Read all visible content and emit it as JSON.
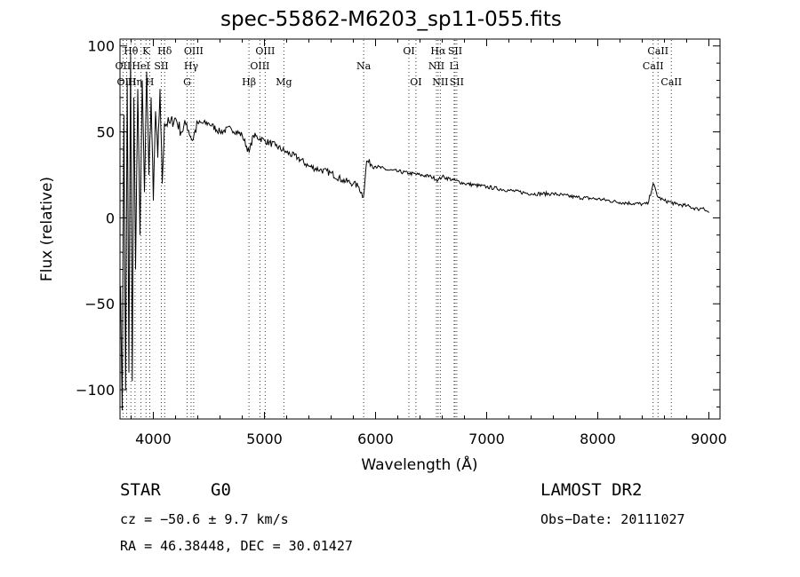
{
  "chart_data": {
    "type": "line",
    "title": "spec-55862-M6203_sp11-055.fits",
    "xlabel": "Wavelength (Å)",
    "ylabel": "Flux (relative)",
    "xlim": [
      3700,
      9100
    ],
    "ylim": [
      -117,
      104
    ],
    "xticks": [
      4000,
      5000,
      6000,
      7000,
      8000,
      9000
    ],
    "yticks": [
      -100,
      -50,
      0,
      50,
      100
    ],
    "grid": false,
    "series": [
      {
        "color": "#000000",
        "x": [
          3705,
          3720,
          3735,
          3750,
          3765,
          3780,
          3795,
          3810,
          3825,
          3840,
          3860,
          3880,
          3900,
          3920,
          3940,
          3960,
          3980,
          4000,
          4020,
          4040,
          4060,
          4080,
          4100,
          4150,
          4200,
          4250,
          4300,
          4350,
          4400,
          4500,
          4600,
          4700,
          4800,
          4862,
          4900,
          5000,
          5100,
          5200,
          5300,
          5400,
          5500,
          5600,
          5700,
          5800,
          5850,
          5890,
          5920,
          6000,
          6100,
          6200,
          6300,
          6400,
          6500,
          6563,
          6600,
          6700,
          6800,
          6900,
          7000,
          7200,
          7400,
          7600,
          7800,
          8000,
          8200,
          8400,
          8450,
          8498,
          8542,
          8600,
          8662,
          8700,
          8800,
          8900,
          8950,
          9000
        ],
        "y": [
          -40,
          -112,
          60,
          -100,
          80,
          -90,
          95,
          -95,
          70,
          -30,
          75,
          -10,
          80,
          15,
          85,
          25,
          70,
          10,
          62,
          35,
          75,
          20,
          55,
          55,
          58,
          50,
          55,
          45,
          55,
          55,
          50,
          52,
          48,
          38,
          48,
          45,
          42,
          38,
          35,
          30,
          28,
          26,
          22,
          20,
          18,
          12,
          33,
          30,
          28,
          27,
          26,
          25,
          24,
          22,
          24,
          22,
          20,
          19,
          18,
          16,
          14,
          14,
          12,
          11,
          9,
          8,
          8,
          20,
          12,
          10,
          9,
          8,
          7,
          5,
          6,
          3
        ]
      }
    ],
    "lines": [
      {
        "label": "Hθ",
        "wl": 3798,
        "row": 1
      },
      {
        "label": "OII",
        "wl": 3727,
        "row": 2
      },
      {
        "label": "OIII",
        "wl": 3760,
        "row": 3
      },
      {
        "label": "K",
        "wl": 3934,
        "row": 1
      },
      {
        "label": "HeI",
        "wl": 3889,
        "row": 2
      },
      {
        "label": "SII",
        "wl": 4072,
        "row": 2
      },
      {
        "label": "Hη",
        "wl": 3835,
        "row": 3
      },
      {
        "label": "H",
        "wl": 3968,
        "row": 3
      },
      {
        "label": "Hδ",
        "wl": 4102,
        "row": 1
      },
      {
        "label": "OIII",
        "wl": 4363,
        "row": 1
      },
      {
        "label": "Hγ",
        "wl": 4340,
        "row": 2
      },
      {
        "label": "G",
        "wl": 4304,
        "row": 3
      },
      {
        "label": "OIII",
        "wl": 5007,
        "row": 1
      },
      {
        "label": "OIII",
        "wl": 4959,
        "row": 2
      },
      {
        "label": "Hβ",
        "wl": 4861,
        "row": 3
      },
      {
        "label": "Mg",
        "wl": 5175,
        "row": 3
      },
      {
        "label": "Na",
        "wl": 5893,
        "row": 2
      },
      {
        "label": "OI",
        "wl": 6300,
        "row": 1
      },
      {
        "label": "OI",
        "wl": 6363,
        "row": 3
      },
      {
        "label": "Hα",
        "wl": 6563,
        "row": 1
      },
      {
        "label": "SII",
        "wl": 6716,
        "row": 1
      },
      {
        "label": "NII",
        "wl": 6548,
        "row": 2
      },
      {
        "label": "Li",
        "wl": 6707,
        "row": 2
      },
      {
        "label": "NII",
        "wl": 6583,
        "row": 3
      },
      {
        "label": "SII",
        "wl": 6731,
        "row": 3
      },
      {
        "label": "CaII",
        "wl": 8542,
        "row": 1
      },
      {
        "label": "CaII",
        "wl": 8498,
        "row": 2
      },
      {
        "label": "CaII",
        "wl": 8662,
        "row": 3
      }
    ]
  },
  "info": {
    "class_label": "STAR",
    "subclass": "G0",
    "survey": "LAMOST DR2",
    "cz": "cz = −50.6 ± 9.7 km/s",
    "obs_date": "Obs−Date: 20111027",
    "coords": "RA =  46.38448, DEC =  30.01427"
  }
}
